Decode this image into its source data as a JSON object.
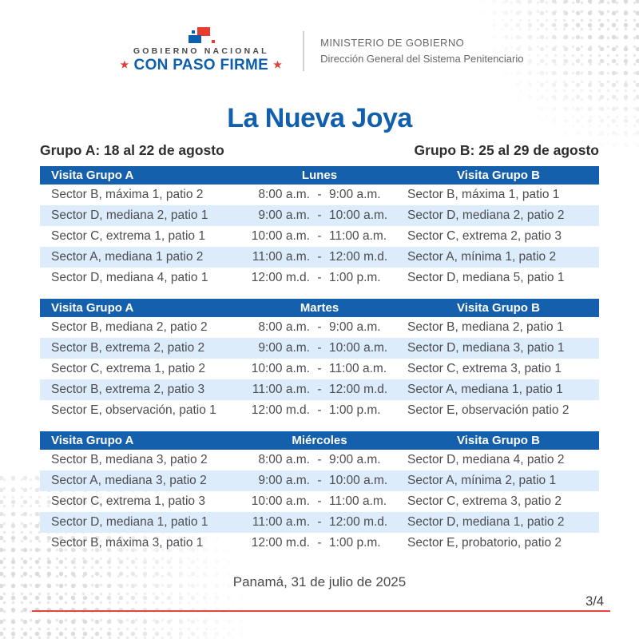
{
  "colors": {
    "primary_blue": "#1560ac",
    "row_alt_blue": "#dcecfa",
    "accent_red": "#e8423e",
    "slogan_blue": "#0d5fae"
  },
  "header": {
    "gobierno_line": "GOBIERNO NACIONAL",
    "slogan": "CON PASO FIRME",
    "star": "★",
    "ministry_line1": "MINISTERIO DE GOBIERNO",
    "ministry_line2": "Dirección General del Sistema Penitenciario"
  },
  "title": "La Nueva Joya",
  "group_a_label": "Grupo A: 18 al 22 de agosto",
  "group_b_label": "Grupo B: 25 al 29 de agosto",
  "tables": [
    {
      "col_a_header": "Visita Grupo A",
      "day": "Lunes",
      "col_b_header": "Visita Grupo B",
      "rows": [
        {
          "a": "Sector B, máxima 1, patio 2",
          "start": "8:00 a.m.",
          "sep": "-",
          "end": "9:00 a.m.",
          "b": "Sector B, máxima 1, patio 1"
        },
        {
          "a": "Sector D, mediana 2, patio 1",
          "start": "9:00 a.m.",
          "sep": "-",
          "end": "10:00 a.m.",
          "b": "Sector D, mediana 2, patio 2"
        },
        {
          "a": "Sector C, extrema 1, patio 1",
          "start": "10:00 a.m.",
          "sep": "-",
          "end": "11:00 a.m.",
          "b": "Sector C, extrema 2, patio 3"
        },
        {
          "a": "Sector A, mediana 1 patio 2",
          "start": "11:00 a.m.",
          "sep": "-",
          "end": "12:00 m.d.",
          "b": "Sector A, mínima 1, patio 2"
        },
        {
          "a": "Sector D, mediana 4, patio 1",
          "start": "12:00 m.d.",
          "sep": "-",
          "end": "1:00 p.m.",
          "b": "Sector D, mediana 5, patio 1"
        }
      ]
    },
    {
      "col_a_header": "Visita Grupo A",
      "day": "Martes",
      "col_b_header": "Visita Grupo B",
      "rows": [
        {
          "a": "Sector B, mediana 2, patio 2",
          "start": "8:00 a.m.",
          "sep": "-",
          "end": "9:00 a.m.",
          "b": "Sector B, mediana 2, patio 1"
        },
        {
          "a": "Sector B, extrema 2, patio 2",
          "start": "9:00 a.m.",
          "sep": "-",
          "end": "10:00 a.m.",
          "b": "Sector D, mediana 3, patio 1"
        },
        {
          "a": "Sector C, extrema 1, patio 2",
          "start": "10:00 a.m.",
          "sep": "-",
          "end": "11:00 a.m.",
          "b": "Sector C, extrema 3, patio 1"
        },
        {
          "a": "Sector B, extrema 2, patio 3",
          "start": "11:00 a.m.",
          "sep": "-",
          "end": "12:00 m.d.",
          "b": "Sector A, mediana 1, patio 1"
        },
        {
          "a": "Sector E, observación, patio 1",
          "start": "12:00 m.d.",
          "sep": "-",
          "end": "1:00 p.m.",
          "b": "Sector E, observación patio 2"
        }
      ]
    },
    {
      "col_a_header": "Visita Grupo A",
      "day": "Miércoles",
      "col_b_header": "Visita Grupo B",
      "rows": [
        {
          "a": "Sector B, mediana 3, patio 2",
          "start": "8:00 a.m.",
          "sep": "-",
          "end": "9:00 a.m.",
          "b": "Sector D, mediana 4, patio 2"
        },
        {
          "a": "Sector A, mediana 3, patio 2",
          "start": "9:00 a.m.",
          "sep": "-",
          "end": "10:00 a.m.",
          "b": "Sector A, mínima 2, patio 1"
        },
        {
          "a": "Sector C, extrema 1, patio 3",
          "start": "10:00 a.m.",
          "sep": "-",
          "end": "11:00 a.m.",
          "b": "Sector C, extrema 3, patio 2"
        },
        {
          "a": "Sector D, mediana 1, patio 1",
          "start": "11:00 a.m.",
          "sep": "-",
          "end": "12:00 m.d.",
          "b": "Sector D, mediana 1, patio 2"
        },
        {
          "a": "Sector B, máxima 3, patio 1",
          "start": "12:00 m.d.",
          "sep": "-",
          "end": "1:00 p.m.",
          "b": "Sector E, probatorio, patio 2"
        }
      ]
    }
  ],
  "footer": {
    "location_date": "Panamá, 31 de julio de 2025",
    "page_indicator": "3/4"
  }
}
